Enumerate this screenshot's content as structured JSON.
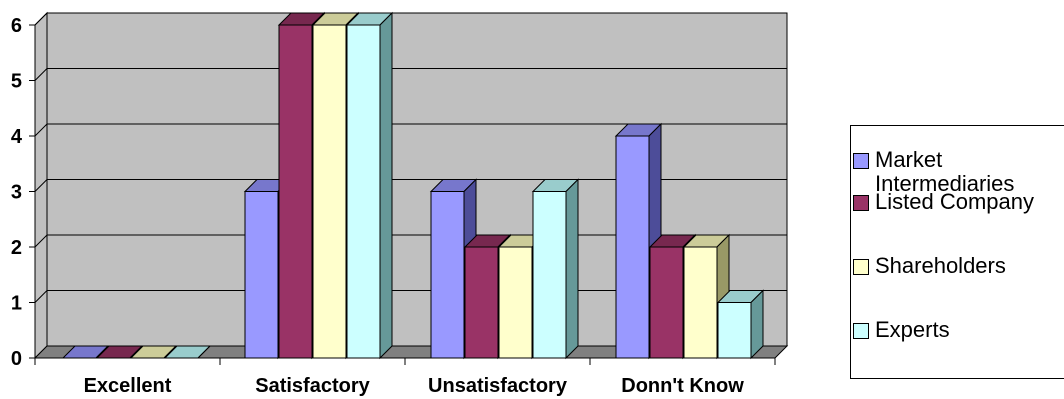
{
  "chart_data": {
    "type": "bar",
    "categories": [
      "Excellent",
      "Satisfactory",
      "Unsatisfactory",
      "Donn't Know"
    ],
    "series": [
      {
        "name": "Market Intermediaries",
        "values": [
          0,
          3,
          3,
          4
        ],
        "color": "#9999ff",
        "side": "#4d4d99",
        "top": "#7777cc"
      },
      {
        "name": "Listed Company",
        "values": [
          0,
          6,
          2,
          2
        ],
        "color": "#993366",
        "side": "#4d1a33",
        "top": "#77284f"
      },
      {
        "name": "Shareholders",
        "values": [
          0,
          6,
          2,
          2
        ],
        "color": "#ffffcc",
        "side": "#999966",
        "top": "#cccc99"
      },
      {
        "name": "Experts",
        "values": [
          0,
          6,
          3,
          1
        ],
        "color": "#ccffff",
        "side": "#669999",
        "top": "#99cccc"
      }
    ],
    "yticks": [
      "0",
      "1",
      "2",
      "3",
      "4",
      "5",
      "6"
    ],
    "ylim": [
      0,
      6
    ],
    "grid": true,
    "wall_color": "#c0c0c0",
    "legend_position": "right",
    "three_d": true
  }
}
